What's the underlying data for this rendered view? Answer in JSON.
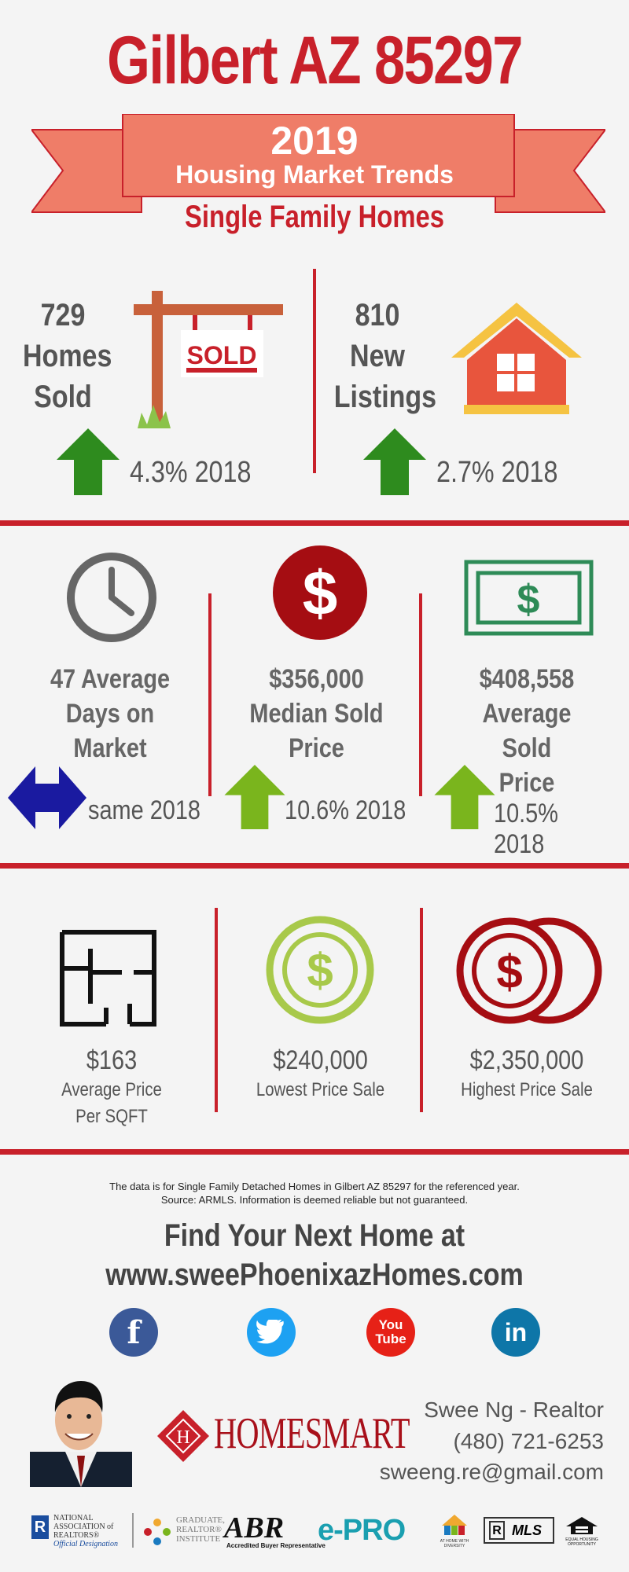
{
  "header": {
    "title": "Gilbert AZ 85297",
    "year": "2019",
    "subtitle": "Housing Market Trends",
    "category": "Single Family Homes",
    "sign_text": "SOLD"
  },
  "top_stats": [
    {
      "number": "729",
      "line1": "Homes",
      "line2": "Sold",
      "change": "4.3% 2018",
      "direction": "up",
      "icon": "sold-sign-icon"
    },
    {
      "number": "810",
      "line1": "New",
      "line2": "Listings",
      "change": "2.7% 2018",
      "direction": "up",
      "icon": "house-icon"
    }
  ],
  "mid_stats": [
    {
      "line1": "47 Average",
      "line2": "Days on",
      "line3": "Market",
      "change": "same 2018",
      "direction": "same",
      "icon": "clock-icon"
    },
    {
      "line1": "$356,000",
      "line2": "Median Sold",
      "line3": "Price",
      "change": "10.6% 2018",
      "direction": "up",
      "icon": "dollar-circle-icon"
    },
    {
      "line1": "$408,558",
      "line2": "Average Sold",
      "line3": "Price",
      "change": "10.5% 2018",
      "direction": "up",
      "icon": "dollar-bill-icon"
    }
  ],
  "bottom_stats": [
    {
      "value": "$163",
      "label1": "Average Price",
      "label2": "Per SQFT",
      "icon": "floor-plan-icon"
    },
    {
      "value": "$240,000",
      "label1": "Lowest Price Sale",
      "icon": "coin-icon"
    },
    {
      "value": "$2,350,000",
      "label1": "Highest Price Sale",
      "icon": "coins-icon"
    }
  ],
  "footer": {
    "disclaimer1": "The data is for Single Family Detached Homes in Gilbert AZ 85297 for the referenced year.",
    "disclaimer2": "Source: ARMLS. Information is deemed reliable but not guaranteed.",
    "find1": "Find Your Next Home at",
    "find2": "www.sweePhoenixazHomes.com",
    "social": [
      {
        "name": "facebook",
        "glyph": "f",
        "color": "#3b5998"
      },
      {
        "name": "twitter",
        "glyph": "t",
        "color": "#1da1f2"
      },
      {
        "name": "youtube",
        "glyph": "You\nTube",
        "color": "#e62117"
      },
      {
        "name": "linkedin",
        "glyph": "in",
        "color": "#0e76a8"
      }
    ],
    "brand_letter": "H",
    "brand": "HOMESMART",
    "agent_name": "Swee Ng - Realtor",
    "phone": "(480) 721-6253",
    "email": "sweeng.re@gmail.com",
    "logos": {
      "nar1": "NATIONAL",
      "nar2": "ASSOCIATION of",
      "nar3": "REALTORS®",
      "nar4": "Official Designation",
      "gri1": "GRADUATE,",
      "gri2": "REALTOR®",
      "gri3": "INSTITUTE",
      "abr": "ABR",
      "abr_sub": "Accredited Buyer Representative",
      "epro": "e-PRO",
      "diversity": "AT HOME WITH DIVERSITY",
      "mls": "MLS",
      "eho": "EQUAL HOUSING OPPORTUNITY"
    }
  },
  "colors": {
    "brand_red": "#c8202a",
    "ribbon": "#ef7d68",
    "up_arrow_dark": "#2e8b1e",
    "up_arrow_light": "#7ab51d",
    "same_arrow": "#1a1aa0"
  }
}
